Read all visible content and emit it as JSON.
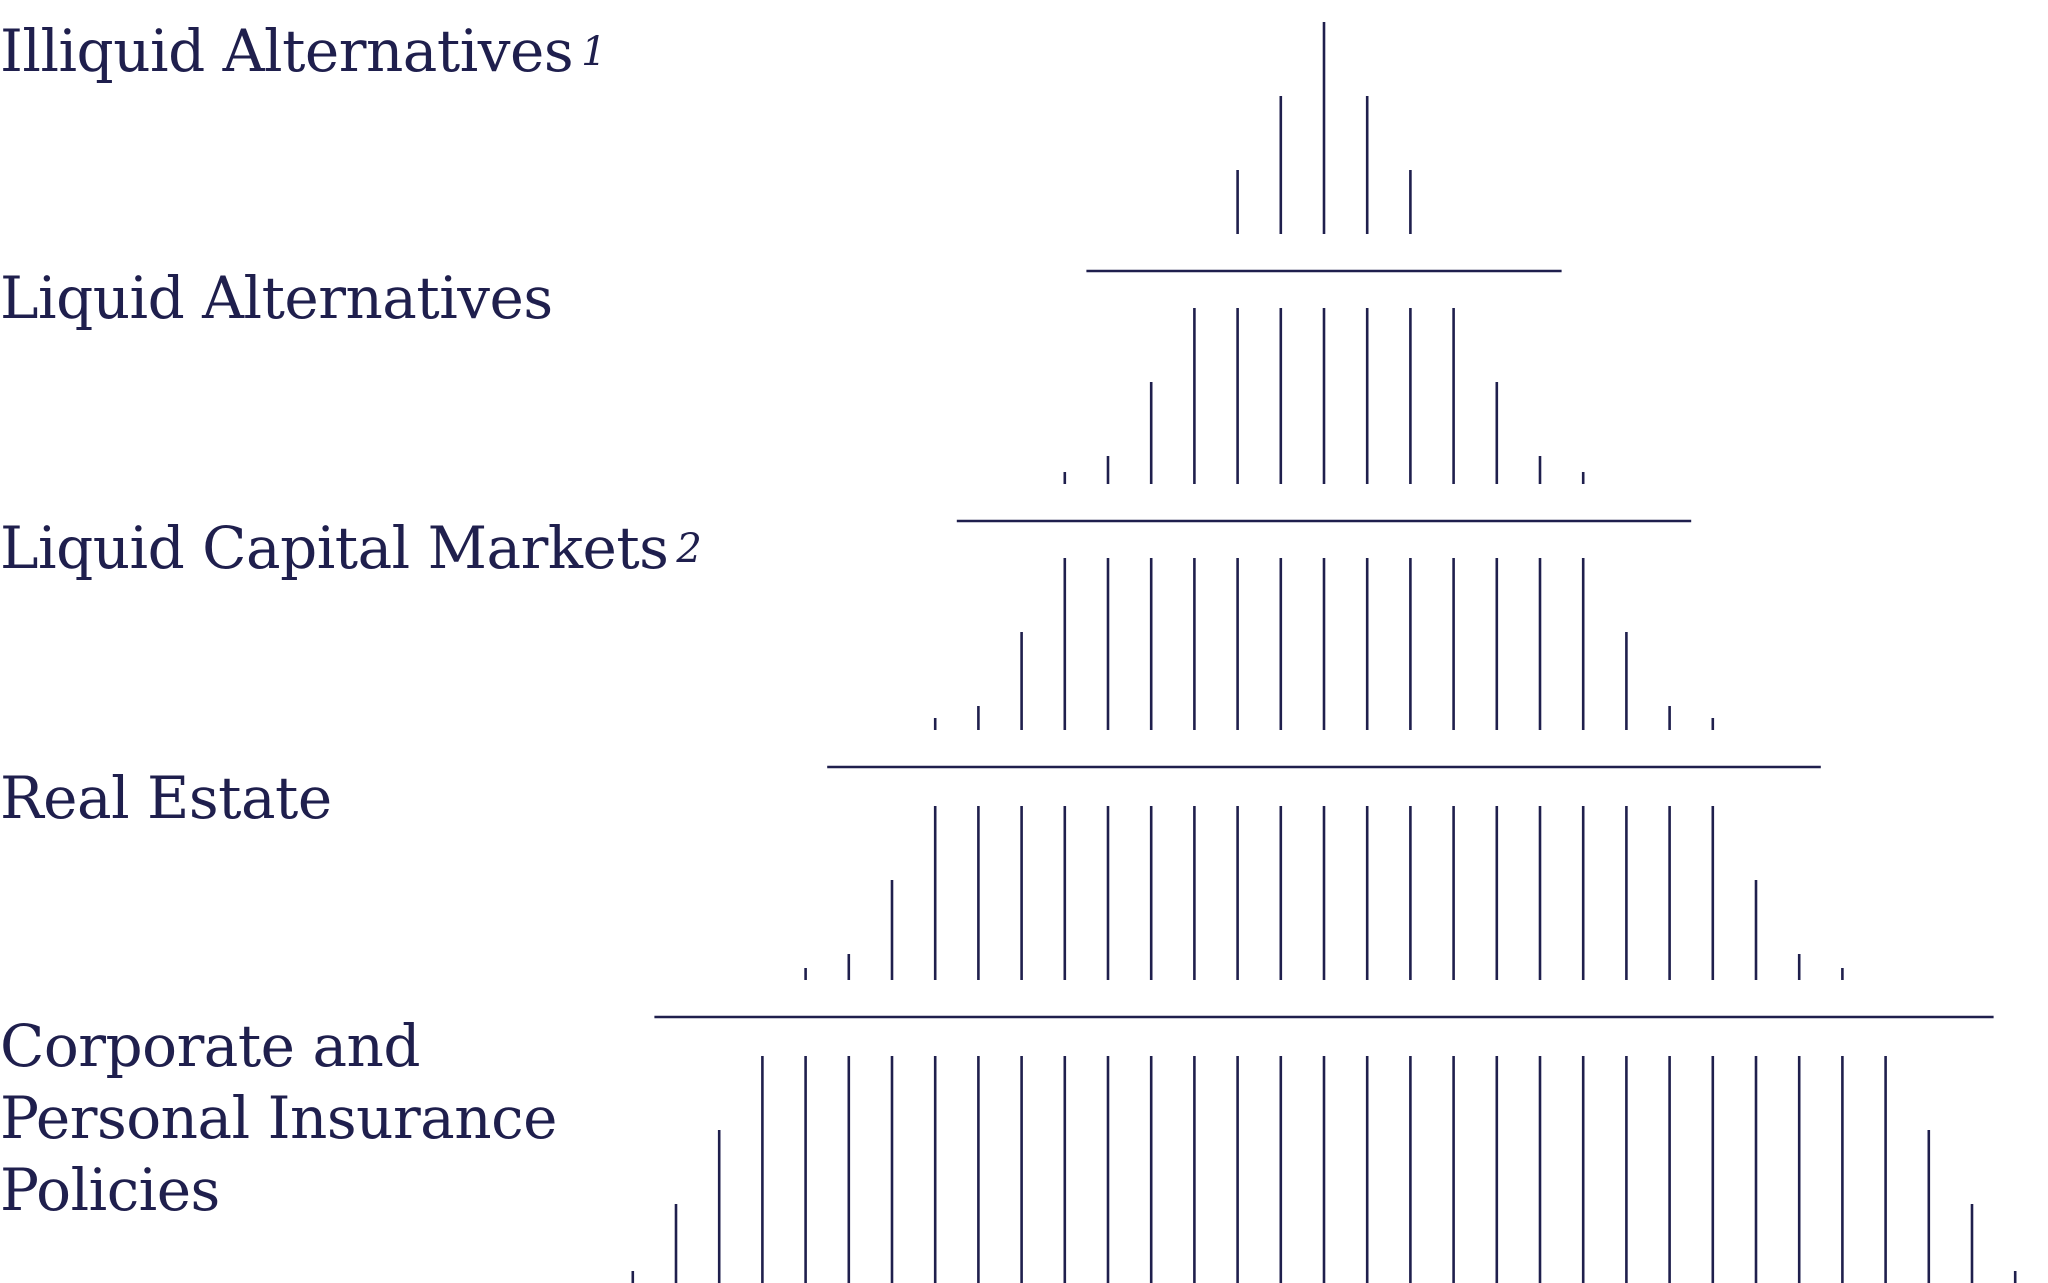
{
  "tiers": [
    {
      "label": "Illiquid Alternatives",
      "note": "1",
      "bars": 5
    },
    {
      "label": "Liquid Alternatives",
      "note": "",
      "bars": 13
    },
    {
      "label": "Liquid Capital Markets",
      "note": "2",
      "bars": 19
    },
    {
      "label": "Real Estate",
      "note": "",
      "bars": 25
    },
    {
      "label_lines": [
        "Corporate and",
        "Personal Insurance",
        "Policies"
      ],
      "note": "",
      "bars": 33
    }
  ],
  "colors": {
    "ink": "#1f1f4d",
    "background": "#ffffff"
  }
}
